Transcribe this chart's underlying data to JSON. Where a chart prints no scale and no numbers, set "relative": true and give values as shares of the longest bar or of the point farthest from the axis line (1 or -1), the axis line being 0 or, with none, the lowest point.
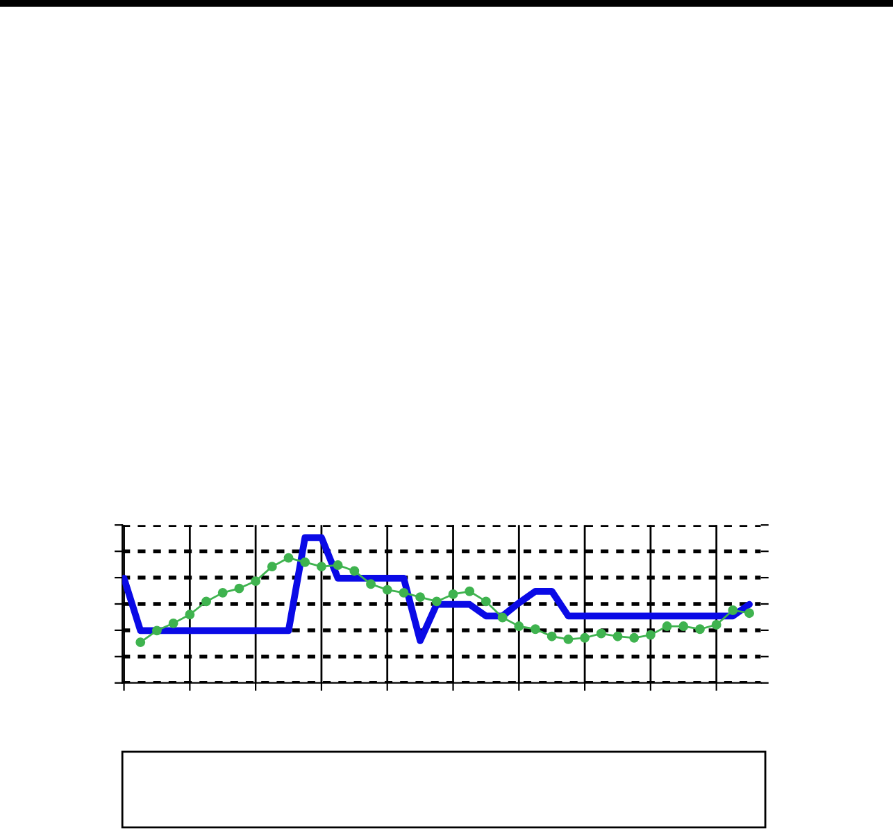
{
  "chart_data": {
    "type": "line",
    "relative": true,
    "grid": true,
    "legend": false,
    "categories": [
      null,
      null,
      null,
      null,
      null,
      null,
      null,
      null,
      null,
      null,
      null,
      null,
      null,
      null,
      null,
      null,
      null,
      null,
      null,
      null,
      null,
      null,
      null,
      null,
      null,
      null,
      null,
      null,
      null,
      null,
      null,
      null,
      null,
      null,
      null,
      null,
      null,
      null,
      null
    ],
    "series": [
      {
        "color": "#0a0ae6",
        "marker": "none",
        "values": [
          0.72,
          0.36,
          0.36,
          0.36,
          0.36,
          0.36,
          0.36,
          0.36,
          0.36,
          0.36,
          0.36,
          1.0,
          1.0,
          0.72,
          0.72,
          0.72,
          0.72,
          0.72,
          0.29,
          0.54,
          0.54,
          0.54,
          0.46,
          0.46,
          0.55,
          0.63,
          0.63,
          0.46,
          0.46,
          0.46,
          0.46,
          0.46,
          0.46,
          0.46,
          0.46,
          0.46,
          0.46,
          0.46,
          0.54
        ]
      },
      {
        "color": "#3fb34f",
        "marker": "circle",
        "values": [
          null,
          0.28,
          0.36,
          0.41,
          0.47,
          0.56,
          0.62,
          0.65,
          0.7,
          0.8,
          0.86,
          0.83,
          0.8,
          0.81,
          0.77,
          0.68,
          0.64,
          0.62,
          0.59,
          0.56,
          0.61,
          0.63,
          0.56,
          0.45,
          0.39,
          0.37,
          0.32,
          0.3,
          0.31,
          0.34,
          0.32,
          0.31,
          0.33,
          0.39,
          0.39,
          0.37,
          0.4,
          0.5,
          0.48
        ]
      }
    ]
  }
}
